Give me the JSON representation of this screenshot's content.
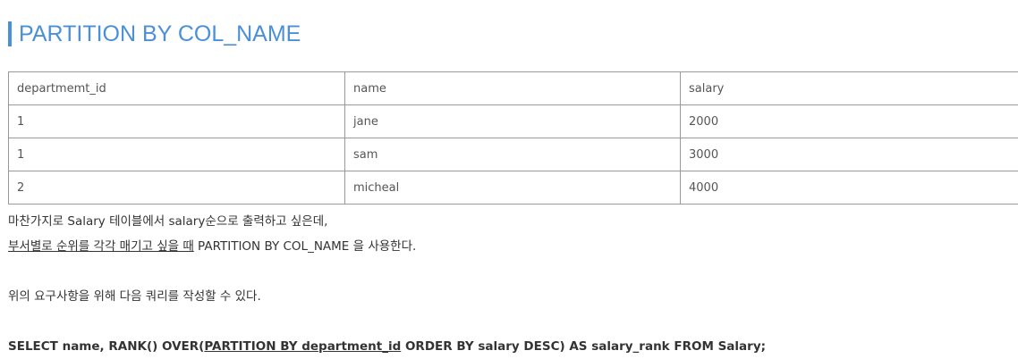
{
  "heading": "PARTITION BY COL_NAME",
  "table": {
    "headers": [
      "departmemt_id",
      "name",
      "salary"
    ],
    "rows": [
      [
        "1",
        "jane",
        "2000"
      ],
      [
        "1",
        "sam",
        "3000"
      ],
      [
        "2",
        "micheal",
        "4000"
      ]
    ]
  },
  "paragraphs": {
    "line1": "마찬가지로 Salary 테이블에서 salary순으로 출력하고 싶은데,",
    "line2_underlined": "부서별로 순위를 각각 매기고 싶을 때",
    "line2_rest": " PARTITION BY COL_NAME 을 사용한다.",
    "line3": "위의 요구사항을 위해 다음 쿼리를 작성할 수 있다."
  },
  "sql": {
    "before": "SELECT name, RANK() OVER(",
    "underlined": "PARTITION BY department_id",
    "after": " ORDER BY salary DESC) AS salary_rank FROM Salary;"
  },
  "colors": {
    "accent": "#4a90d9",
    "border": "#999999",
    "text": "#333333"
  }
}
